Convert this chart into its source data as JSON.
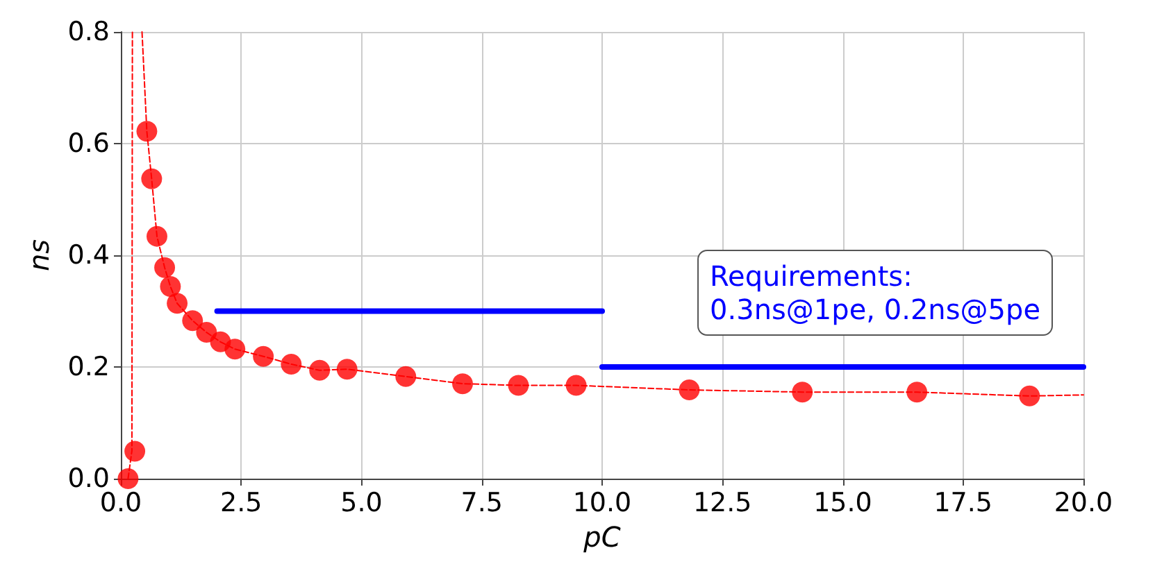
{
  "chart_data": {
    "type": "scatter",
    "xlabel": "pC",
    "ylabel": "ns",
    "xlim": [
      0,
      20
    ],
    "ylim": [
      0,
      0.8
    ],
    "xticks": [
      {
        "value": 0,
        "label": "0.0"
      },
      {
        "value": 2.5,
        "label": "2.5"
      },
      {
        "value": 5,
        "label": "5.0"
      },
      {
        "value": 7.5,
        "label": "7.5"
      },
      {
        "value": 10,
        "label": "10.0"
      },
      {
        "value": 12.5,
        "label": "12.5"
      },
      {
        "value": 15,
        "label": "15.0"
      },
      {
        "value": 17.5,
        "label": "17.5"
      },
      {
        "value": 20,
        "label": "20.0"
      }
    ],
    "yticks": [
      {
        "value": 0,
        "label": "0.0"
      },
      {
        "value": 0.2,
        "label": "0.2"
      },
      {
        "value": 0.4,
        "label": "0.4"
      },
      {
        "value": 0.6,
        "label": "0.6"
      },
      {
        "value": 0.8,
        "label": "0.8"
      }
    ],
    "grid": true,
    "annotations": [
      "Requirements:\n0.3ns@1pe, 0.2ns@5pe"
    ],
    "series": [
      {
        "type": "line",
        "color": "#ff0000",
        "line_style": "dashed",
        "marker": "none",
        "x": [
          0.15,
          0.23,
          0.24,
          0.3,
          0.44,
          0.54,
          0.64,
          0.75,
          0.91,
          1.03,
          1.17,
          1.49,
          1.78,
          2.07,
          2.37,
          2.96,
          3.54,
          4.13,
          4.7,
          5.92,
          7.1,
          8.26,
          9.46,
          11.81,
          14.16,
          16.54,
          18.88,
          20
        ],
        "values": [
          0,
          0.05,
          0.8,
          null,
          0.8,
          0.622,
          0.537,
          0.434,
          0.378,
          0.344,
          0.314,
          0.283,
          0.262,
          0.245,
          0.232,
          0.219,
          0.205,
          0.194,
          0.196,
          0.183,
          0.17,
          0.167,
          0.167,
          0.159,
          0.155,
          0.155,
          0.148,
          0.15
        ]
      },
      {
        "type": "scatter",
        "color": "#ff0000",
        "marker": "circle",
        "x": [
          0.15,
          0.29,
          0.54,
          0.64,
          0.75,
          0.91,
          1.03,
          1.17,
          1.49,
          1.78,
          2.07,
          2.37,
          2.96,
          3.54,
          4.13,
          4.7,
          5.92,
          7.1,
          8.26,
          9.46,
          11.81,
          14.16,
          16.54,
          18.88
        ],
        "values": [
          0,
          0.049,
          0.622,
          0.537,
          0.434,
          0.378,
          0.344,
          0.314,
          0.283,
          0.262,
          0.245,
          0.232,
          0.219,
          0.205,
          0.194,
          0.196,
          0.183,
          0.17,
          0.167,
          0.167,
          0.159,
          0.155,
          0.155,
          0.148
        ]
      },
      {
        "type": "line",
        "color": "#0000ff",
        "line_style": "solid",
        "marker": "none",
        "x": [
          2,
          10
        ],
        "values": [
          0.3,
          0.3
        ]
      },
      {
        "type": "line",
        "color": "#0000ff",
        "line_style": "solid",
        "marker": "none",
        "x": [
          10,
          20
        ],
        "values": [
          0.2,
          0.2
        ]
      }
    ]
  }
}
